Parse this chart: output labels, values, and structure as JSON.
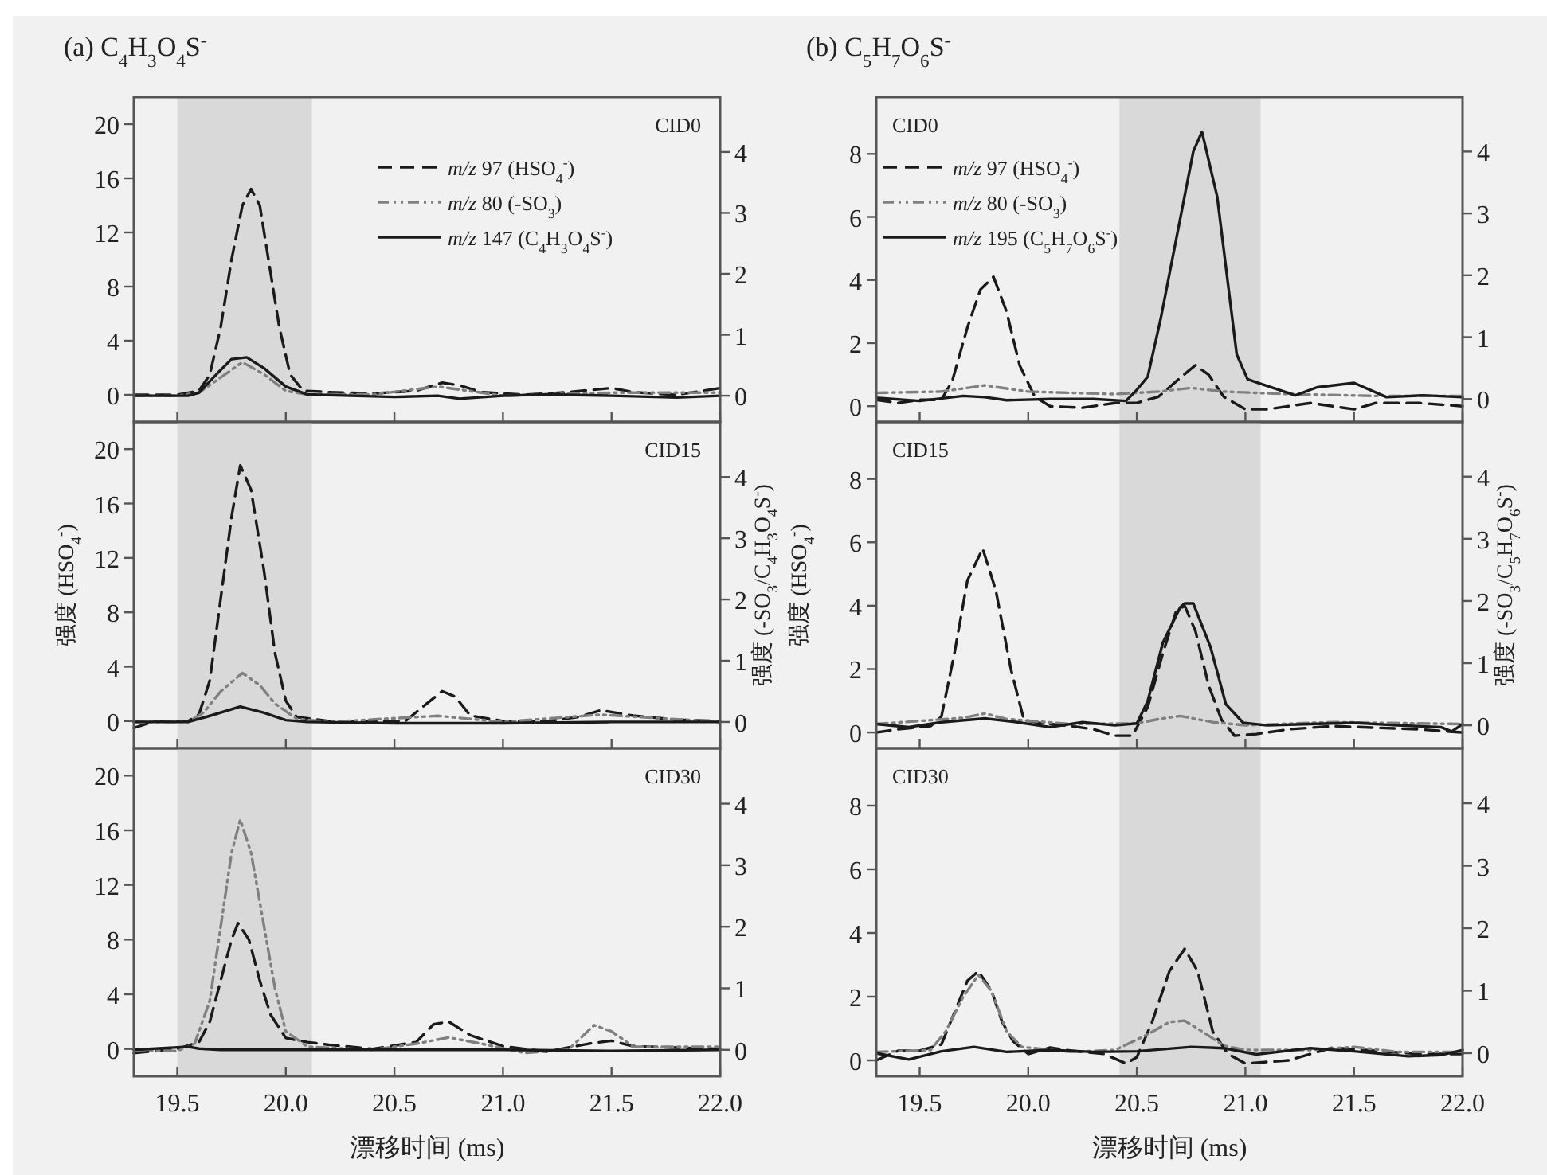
{
  "chart_data": [
    {
      "type": "line",
      "title": "(a) C$_{4}$H$_{3}$O$_{4}$S$^{-}$",
      "annotations": [
        "CID0"
      ],
      "legend": "top right",
      "tick_labels": "y",
      "xlim": [
        19.3,
        22.0
      ],
      "xticks": [
        19.5,
        20,
        20.5,
        21,
        21.5,
        22
      ],
      "ylim": [
        -2,
        22
      ],
      "yticks": [
        0,
        4,
        8,
        12,
        16,
        20
      ],
      "y2lim": [
        -0.43,
        4.9
      ],
      "y2ticks": [
        0,
        1,
        2,
        3,
        4
      ],
      "bands": [
        {
          "axis": "x",
          "from": 19.5,
          "to": 20.12,
          "color": "#d9d9d9"
        }
      ],
      "series": [
        {
          "name": "*m/z* 97 (HSO$_{4}$$^{-}$)",
          "color": "#1a1a1a",
          "line_style": "dashed",
          "x": [
            19.3,
            19.4,
            19.5,
            19.6,
            19.65,
            19.7,
            19.75,
            19.8,
            19.84,
            19.88,
            19.92,
            19.97,
            20.02,
            20.08,
            20.2,
            20.4,
            20.6,
            20.72,
            20.8,
            20.9,
            21.1,
            21.3,
            21.5,
            21.6,
            21.8,
            22.0
          ],
          "values": [
            0,
            0,
            0,
            0.3,
            1.5,
            5,
            10,
            14,
            15.2,
            14,
            10,
            5,
            1.5,
            0.3,
            0.2,
            0.1,
            0.3,
            0.9,
            0.7,
            0.2,
            0,
            0.2,
            0.5,
            0.2,
            0,
            0.5
          ]
        },
        {
          "name": "*m/z* 80 (-SO$_{3}$)",
          "color": "#808080",
          "line_style": "dotted",
          "axis": "y2",
          "x": [
            19.3,
            19.5,
            19.6,
            19.7,
            19.8,
            19.9,
            20.0,
            20.1,
            20.4,
            20.7,
            20.8,
            21.0,
            21.5,
            22.0
          ],
          "values": [
            0,
            0,
            0.05,
            0.3,
            0.55,
            0.35,
            0.08,
            0.02,
            0.02,
            0.15,
            0.1,
            0,
            0.05,
            0.05
          ]
        },
        {
          "name": "*m/z* 147 (C$_{4}$H$_{3}$O$_{4}$S$^{-}$)",
          "color": "#1a1a1a",
          "line_style": "solid",
          "axis": "y2",
          "x": [
            19.3,
            19.55,
            19.6,
            19.68,
            19.75,
            19.82,
            19.9,
            20.0,
            20.1,
            20.3,
            20.5,
            20.7,
            20.8,
            21.0,
            21.2,
            21.5,
            21.8,
            22.0
          ],
          "values": [
            0,
            0,
            0.05,
            0.35,
            0.6,
            0.63,
            0.45,
            0.15,
            0.02,
            0,
            -0.02,
            0,
            -0.05,
            0,
            0.02,
            0,
            -0.03,
            0
          ]
        }
      ]
    },
    {
      "type": "line",
      "title": "(b) C$_{5}$H$_{7}$O$_{6}$S$^{-}$",
      "annotations": [
        "CID0"
      ],
      "legend": "top left",
      "tick_labels": "y",
      "xlim": [
        19.3,
        22.0
      ],
      "xticks": [
        19.5,
        20,
        20.5,
        21,
        21.5,
        22
      ],
      "ylim": [
        -0.5,
        9.8
      ],
      "yticks": [
        0,
        2,
        4,
        6,
        8
      ],
      "y2lim": [
        -0.37,
        4.88
      ],
      "y2ticks": [
        0,
        1,
        2,
        3,
        4
      ],
      "bands": [
        {
          "axis": "x",
          "from": 20.42,
          "to": 21.07,
          "color": "#d9d9d9"
        }
      ],
      "series": [
        {
          "name": "*m/z* 97 (HSO$_{4}$$^{-}$)",
          "color": "#1a1a1a",
          "line_style": "dashed",
          "x": [
            19.3,
            19.4,
            19.5,
            19.6,
            19.65,
            19.72,
            19.78,
            19.84,
            19.9,
            19.96,
            20.03,
            20.1,
            20.25,
            20.4,
            20.5,
            20.6,
            20.7,
            20.77,
            20.83,
            20.9,
            21.0,
            21.1,
            21.3,
            21.5,
            21.6,
            21.8,
            22.0
          ],
          "values": [
            0.2,
            0.1,
            0.2,
            0.2,
            0.8,
            2.5,
            3.7,
            4.1,
            3,
            1.3,
            0.3,
            0,
            -0.05,
            0.1,
            0.1,
            0.3,
            0.9,
            1.3,
            1,
            0.3,
            -0.1,
            -0.1,
            0.1,
            -0.1,
            0.1,
            0.1,
            0
          ]
        },
        {
          "name": "*m/z* 80 (-SO$_{3}$)",
          "color": "#808080",
          "line_style": "dotted",
          "axis": "y2",
          "x": [
            19.3,
            19.6,
            19.8,
            20.0,
            20.4,
            20.6,
            20.75,
            20.9,
            21.2,
            21.6,
            22.0
          ],
          "values": [
            0.1,
            0.12,
            0.22,
            0.12,
            0.08,
            0.12,
            0.18,
            0.12,
            0.08,
            0.05,
            0.05
          ]
        },
        {
          "name": "*m/z* 195 (C$_{5}$H$_{7}$O$_{6}$S$^{-}$)",
          "color": "#1a1a1a",
          "line_style": "solid",
          "axis": "y2",
          "x": [
            19.3,
            19.5,
            19.7,
            19.8,
            19.9,
            20.1,
            20.3,
            20.45,
            20.5,
            20.55,
            20.61,
            20.76,
            20.8,
            20.87,
            20.96,
            21.01,
            21.06,
            21.23,
            21.33,
            21.5,
            21.65,
            21.82,
            22.0
          ],
          "values": [
            0.02,
            -0.03,
            0.05,
            0.03,
            -0.02,
            0,
            0,
            -0.03,
            0.15,
            0.36,
            1.3,
            4.0,
            4.32,
            3.27,
            0.72,
            0.32,
            0.26,
            0.06,
            0.19,
            0.26,
            0.03,
            0.06,
            0.03
          ]
        }
      ]
    },
    {
      "type": "line",
      "ylabel": "强度 (HSO$_{4}$$^{-}$)",
      "y2label": "强度 (-SO$_{3}$/C$_{4}$H$_{3}$O$_{4}$S$^{-}$)",
      "annotations": [
        "CID15"
      ],
      "tick_labels": "y",
      "xlim": [
        19.3,
        22.0
      ],
      "xticks": [
        19.5,
        20,
        20.5,
        21,
        21.5,
        22
      ],
      "ylim": [
        -2,
        22
      ],
      "yticks": [
        0,
        4,
        8,
        12,
        16,
        20
      ],
      "y2lim": [
        -0.43,
        4.9
      ],
      "y2ticks": [
        0,
        1,
        2,
        3,
        4
      ],
      "bands": [
        {
          "axis": "x",
          "from": 19.5,
          "to": 20.12,
          "color": "#d9d9d9"
        }
      ],
      "series": [
        {
          "color": "#1a1a1a",
          "line_style": "dashed",
          "x": [
            19.3,
            19.4,
            19.55,
            19.6,
            19.65,
            19.7,
            19.75,
            19.79,
            19.84,
            19.9,
            19.95,
            20.0,
            20.05,
            20.2,
            20.4,
            20.55,
            20.65,
            20.72,
            20.78,
            20.85,
            21.0,
            21.2,
            21.35,
            21.45,
            21.6,
            21.8,
            22.0
          ],
          "values": [
            -0.5,
            0,
            0,
            0.5,
            3,
            9,
            15,
            18.8,
            17,
            11,
            5,
            1.5,
            0.3,
            0,
            0,
            0,
            1.3,
            2.2,
            1.8,
            0.4,
            0,
            0,
            0.3,
            0.8,
            0.4,
            0.1,
            0
          ]
        },
        {
          "color": "#808080",
          "line_style": "dotted",
          "axis": "y2",
          "x": [
            19.3,
            19.55,
            19.62,
            19.7,
            19.8,
            19.88,
            19.95,
            20.05,
            20.2,
            20.7,
            21.0,
            21.45,
            22.0
          ],
          "values": [
            0,
            0,
            0.15,
            0.5,
            0.8,
            0.6,
            0.3,
            0.05,
            0,
            0.1,
            0,
            0.12,
            0
          ]
        },
        {
          "color": "#1a1a1a",
          "line_style": "solid",
          "axis": "y2",
          "x": [
            19.3,
            19.55,
            19.65,
            19.79,
            19.9,
            20.0,
            20.1,
            20.5,
            21.0,
            21.5,
            22.0
          ],
          "values": [
            0,
            0,
            0.1,
            0.25,
            0.15,
            0.03,
            0,
            -0.02,
            -0.02,
            0,
            0
          ]
        }
      ]
    },
    {
      "type": "line",
      "ylabel": "强度 (HSO$_{4}$$^{-}$)",
      "y2label": "强度 (-SO$_{3}$/C$_{5}$H$_{7}$O$_{6}$S$^{-}$)",
      "annotations": [
        "CID15"
      ],
      "tick_labels": "y",
      "xlim": [
        19.3,
        22.0
      ],
      "xticks": [
        19.5,
        20,
        20.5,
        21,
        21.5,
        22
      ],
      "ylim": [
        -0.5,
        9.8
      ],
      "yticks": [
        0,
        2,
        4,
        6,
        8
      ],
      "y2lim": [
        -0.37,
        4.88
      ],
      "y2ticks": [
        0,
        1,
        2,
        3,
        4
      ],
      "bands": [
        {
          "axis": "x",
          "from": 20.42,
          "to": 21.07,
          "color": "#d9d9d9"
        }
      ],
      "series": [
        {
          "color": "#1a1a1a",
          "line_style": "dashed",
          "x": [
            19.3,
            19.4,
            19.55,
            19.6,
            19.66,
            19.72,
            19.79,
            19.85,
            19.92,
            19.98,
            20.05,
            20.2,
            20.3,
            20.4,
            20.48,
            20.55,
            20.62,
            20.68,
            20.72,
            20.77,
            20.83,
            20.89,
            20.95,
            21.05,
            21.2,
            21.4,
            21.6,
            21.8,
            22.0
          ],
          "values": [
            0,
            0.1,
            0.2,
            0.5,
            2.5,
            4.8,
            5.8,
            4.5,
            2,
            0.4,
            0.3,
            0.2,
            0.1,
            -0.1,
            -0.1,
            0.8,
            2.5,
            3.8,
            4,
            3.2,
            1.5,
            0.4,
            -0.1,
            -0.05,
            0.1,
            0.2,
            0.15,
            0.1,
            0
          ]
        },
        {
          "color": "#808080",
          "line_style": "dotted",
          "axis": "y2",
          "x": [
            19.3,
            19.7,
            19.8,
            19.9,
            20.2,
            20.5,
            20.6,
            20.7,
            20.85,
            21.0,
            21.4,
            21.8,
            22.0
          ],
          "values": [
            0.02,
            0.12,
            0.19,
            0.1,
            0.02,
            0.03,
            0.1,
            0.15,
            0.05,
            0,
            0.05,
            0.03,
            0.02
          ]
        },
        {
          "color": "#1a1a1a",
          "line_style": "solid",
          "axis": "y2",
          "x": [
            19.3,
            19.45,
            19.6,
            19.8,
            19.95,
            20.1,
            20.25,
            20.4,
            20.5,
            20.55,
            20.62,
            20.7,
            20.72,
            20.76,
            20.84,
            20.91,
            20.99,
            21.1,
            21.3,
            21.5,
            21.7,
            21.9,
            21.95,
            22.0
          ],
          "values": [
            0.02,
            -0.03,
            0.05,
            0.11,
            0.05,
            -0.03,
            0.05,
            0,
            0.03,
            0.39,
            1.33,
            1.9,
            1.96,
            1.96,
            1.25,
            0.34,
            0.04,
            0,
            0.02,
            0.04,
            0,
            -0.03,
            -0.1,
            0.02
          ]
        }
      ]
    },
    {
      "type": "line",
      "xlabel": "漂移时间 (ms)",
      "annotations": [
        "CID30"
      ],
      "xlim": [
        19.3,
        22.0
      ],
      "xticks": [
        19.5,
        {
          "value": 20.0,
          "label": "20.0"
        },
        20.5,
        {
          "value": 21.0,
          "label": "21.0"
        },
        21.5,
        {
          "value": 22.0,
          "label": "22.0"
        }
      ],
      "ylim": [
        -2,
        22
      ],
      "yticks": [
        0,
        4,
        8,
        12,
        16,
        20
      ],
      "y2lim": [
        -0.43,
        4.9
      ],
      "y2ticks": [
        0,
        1,
        2,
        3,
        4
      ],
      "bands": [
        {
          "axis": "x",
          "from": 19.5,
          "to": 20.12,
          "color": "#d9d9d9"
        }
      ],
      "series": [
        {
          "color": "#1a1a1a",
          "line_style": "dashed",
          "x": [
            19.3,
            19.5,
            19.6,
            19.65,
            19.7,
            19.75,
            19.78,
            19.83,
            19.88,
            19.93,
            20.0,
            20.1,
            20.2,
            20.4,
            20.6,
            20.68,
            20.75,
            20.85,
            21.0,
            21.2,
            21.4,
            21.5,
            21.6,
            22.0
          ],
          "values": [
            -0.3,
            0,
            0.5,
            2,
            5,
            8,
            9.2,
            8,
            5,
            2.5,
            0.8,
            0.5,
            0.3,
            0,
            0.5,
            1.8,
            2,
            1,
            0.2,
            -0.2,
            0.4,
            0.6,
            0.2,
            0
          ]
        },
        {
          "color": "#808080",
          "line_style": "dotted",
          "axis": "y2",
          "x": [
            19.3,
            19.5,
            19.58,
            19.65,
            19.7,
            19.75,
            19.79,
            19.84,
            19.9,
            19.95,
            20.0,
            20.1,
            20.4,
            20.6,
            20.75,
            20.9,
            21.1,
            21.3,
            21.42,
            21.5,
            21.6,
            22.0
          ],
          "values": [
            0,
            -0.02,
            0.1,
            0.8,
            2,
            3.2,
            3.74,
            3.2,
            2,
            1,
            0.3,
            0.05,
            0,
            0.1,
            0.2,
            0.1,
            -0.05,
            0,
            0.4,
            0.3,
            0.05,
            0.05
          ]
        },
        {
          "color": "#1a1a1a",
          "line_style": "solid",
          "axis": "y2",
          "x": [
            19.3,
            19.55,
            19.6,
            19.7,
            20.0,
            20.5,
            21.0,
            21.5,
            22.0
          ],
          "values": [
            0,
            0.05,
            0.02,
            0,
            0,
            0,
            0,
            -0.02,
            0
          ]
        }
      ]
    },
    {
      "type": "line",
      "xlabel": "漂移时间 (ms)",
      "annotations": [
        "CID30"
      ],
      "xlim": [
        19.3,
        22.0
      ],
      "xticks": [
        19.5,
        {
          "value": 20.0,
          "label": "20.0"
        },
        20.5,
        {
          "value": 21.0,
          "label": "21.0"
        },
        21.5,
        {
          "value": 22.0,
          "label": "22.0"
        }
      ],
      "ylim": [
        -0.5,
        9.8
      ],
      "yticks": [
        0,
        2,
        4,
        6,
        8
      ],
      "y2lim": [
        -0.37,
        4.88
      ],
      "y2ticks": [
        0,
        1,
        2,
        3,
        4
      ],
      "bands": [
        {
          "axis": "x",
          "from": 20.42,
          "to": 21.07,
          "color": "#d9d9d9"
        }
      ],
      "series": [
        {
          "color": "#1a1a1a",
          "line_style": "dashed",
          "x": [
            19.3,
            19.4,
            19.5,
            19.6,
            19.66,
            19.72,
            19.77,
            19.83,
            19.88,
            19.93,
            20.0,
            20.1,
            20.2,
            20.35,
            20.45,
            20.5,
            20.57,
            20.65,
            20.72,
            20.78,
            20.85,
            20.92,
            21.0,
            21.2,
            21.4,
            21.6,
            21.8,
            22.0
          ],
          "values": [
            0,
            0.3,
            0.3,
            0.5,
            1.5,
            2.5,
            2.8,
            2.2,
            1.2,
            0.6,
            0.2,
            0.4,
            0.3,
            0.2,
            -0.1,
            0.1,
            1.2,
            2.8,
            3.5,
            2.8,
            0.9,
            0.2,
            -0.1,
            0,
            0.4,
            0.3,
            0.2,
            0.2
          ]
        },
        {
          "color": "#808080",
          "line_style": "dotted",
          "axis": "y2",
          "x": [
            19.3,
            19.55,
            19.62,
            19.7,
            19.77,
            19.83,
            19.9,
            19.97,
            20.2,
            20.4,
            20.55,
            20.65,
            20.72,
            20.8,
            20.9,
            21.0,
            21.3,
            21.5,
            21.7,
            22.0
          ],
          "values": [
            0.02,
            0.05,
            0.35,
            0.9,
            1.25,
            1.0,
            0.35,
            0.1,
            0.02,
            0.05,
            0.3,
            0.5,
            0.52,
            0.35,
            0.12,
            0.05,
            0.05,
            0.1,
            0.02,
            0.02
          ]
        },
        {
          "color": "#1a1a1a",
          "line_style": "solid",
          "axis": "y2",
          "x": [
            19.3,
            19.45,
            19.6,
            19.75,
            19.9,
            20.1,
            20.3,
            20.5,
            20.75,
            20.9,
            21.05,
            21.3,
            21.5,
            21.75,
            21.9,
            22.0
          ],
          "values": [
            0,
            -0.1,
            0.03,
            0.1,
            0.02,
            0.05,
            0.02,
            0.03,
            0.1,
            0.08,
            -0.02,
            0.08,
            0.03,
            -0.05,
            -0.03,
            0.05
          ]
        }
      ]
    }
  ]
}
